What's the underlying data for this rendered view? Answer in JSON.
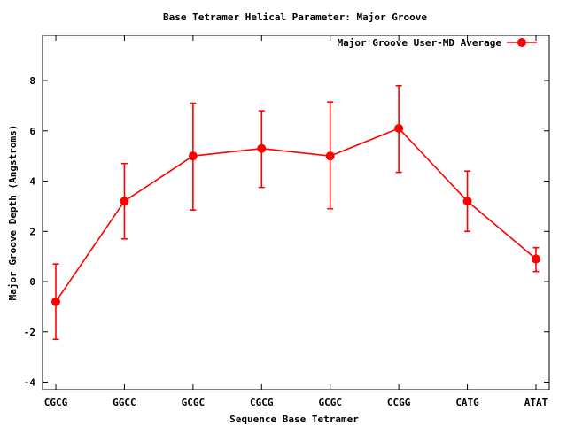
{
  "chart_data": {
    "type": "line",
    "title": "Base Tetramer Helical Parameter: Major Groove",
    "xlabel": "Sequence Base Tetramer",
    "ylabel": "Major Groove Depth (Angstroms)",
    "categories": [
      "CGCG",
      "GGCC",
      "GCGC",
      "CGCG",
      "GCGC",
      "CCGG",
      "CATG",
      "ATAT"
    ],
    "ylim": [
      -4.3,
      9.8
    ],
    "yticks": [
      "-4",
      "-2",
      "0",
      "2",
      "4",
      "6",
      "8"
    ],
    "grid": false,
    "legend_position": "top-right",
    "series": [
      {
        "name": "Major Groove User-MD Average",
        "color": "#ff0000",
        "values": [
          -0.8,
          3.2,
          5.0,
          5.3,
          5.0,
          6.1,
          3.2,
          0.9
        ],
        "error_low": [
          -2.3,
          1.7,
          2.85,
          3.75,
          2.9,
          4.35,
          2.0,
          0.4
        ],
        "error_high": [
          0.7,
          4.7,
          7.1,
          6.8,
          7.15,
          7.8,
          4.4,
          1.35
        ]
      }
    ]
  }
}
